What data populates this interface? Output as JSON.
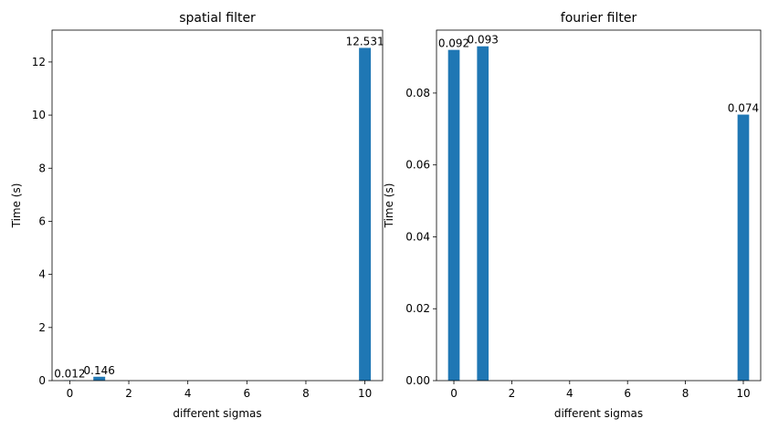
{
  "chart_data": [
    {
      "type": "bar",
      "title": "spatial filter",
      "xlabel": "different sigmas",
      "ylabel": "Time (s)",
      "x": [
        0,
        1,
        10
      ],
      "values": [
        0.012,
        0.146,
        12.531
      ],
      "value_labels": [
        "0.012",
        "0.146",
        "12.531"
      ],
      "xlim": [
        -0.6,
        10.6
      ],
      "ylim": [
        0,
        13.2
      ],
      "xticks": [
        0,
        2,
        4,
        6,
        8,
        10
      ],
      "xtick_labels": [
        "0",
        "2",
        "4",
        "6",
        "8",
        "10"
      ],
      "yticks": [
        0,
        2,
        4,
        6,
        8,
        10,
        12
      ],
      "ytick_labels": [
        "0",
        "2",
        "4",
        "6",
        "8",
        "10",
        "12"
      ],
      "bar_color": "#1f77b4",
      "grid": false
    },
    {
      "type": "bar",
      "title": "fourier filter",
      "xlabel": "different sigmas",
      "ylabel": "Time (s)",
      "x": [
        0,
        1,
        10
      ],
      "values": [
        0.092,
        0.093,
        0.074
      ],
      "value_labels": [
        "0.092",
        "0.093",
        "0.074"
      ],
      "xlim": [
        -0.6,
        10.6
      ],
      "ylim": [
        0,
        0.0975
      ],
      "xticks": [
        0,
        2,
        4,
        6,
        8,
        10
      ],
      "xtick_labels": [
        "0",
        "2",
        "4",
        "6",
        "8",
        "10"
      ],
      "yticks": [
        0,
        0.02,
        0.04,
        0.06,
        0.08
      ],
      "ytick_labels": [
        "0.00",
        "0.02",
        "0.04",
        "0.06",
        "0.08"
      ],
      "bar_color": "#1f77b4",
      "grid": false
    }
  ]
}
